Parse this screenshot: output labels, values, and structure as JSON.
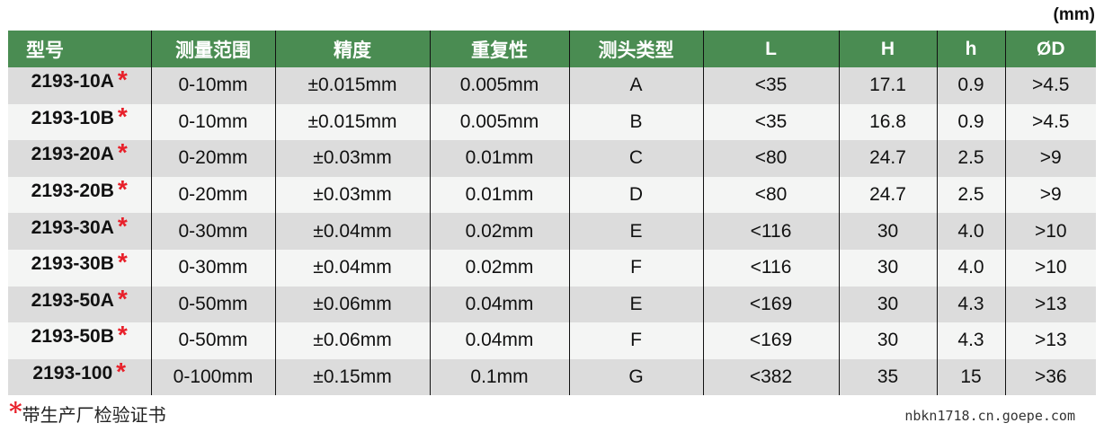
{
  "unit": "(mm)",
  "headers": [
    "型号",
    "测量范围",
    "精度",
    "重复性",
    "测头类型",
    "L",
    "H",
    "h",
    "ØD"
  ],
  "rows": [
    [
      "2193-10A",
      "0-10mm",
      "±0.015mm",
      "0.005mm",
      "A",
      "<35",
      "17.1",
      "0.9",
      ">4.5"
    ],
    [
      "2193-10B",
      "0-10mm",
      "±0.015mm",
      "0.005mm",
      "B",
      "<35",
      "16.8",
      "0.9",
      ">4.5"
    ],
    [
      "2193-20A",
      "0-20mm",
      "±0.03mm",
      "0.01mm",
      "C",
      "<80",
      "24.7",
      "2.5",
      ">9"
    ],
    [
      "2193-20B",
      "0-20mm",
      "±0.03mm",
      "0.01mm",
      "D",
      "<80",
      "24.7",
      "2.5",
      ">9"
    ],
    [
      "2193-30A",
      "0-30mm",
      "±0.04mm",
      "0.02mm",
      "E",
      "<116",
      "30",
      "4.0",
      ">10"
    ],
    [
      "2193-30B",
      "0-30mm",
      "±0.04mm",
      "0.02mm",
      "F",
      "<116",
      "30",
      "4.0",
      ">10"
    ],
    [
      "2193-50A",
      "0-50mm",
      "±0.06mm",
      "0.04mm",
      "E",
      "<169",
      "30",
      "4.3",
      ">13"
    ],
    [
      "2193-50B",
      "0-50mm",
      "±0.06mm",
      "0.04mm",
      "F",
      "<169",
      "30",
      "4.3",
      ">13"
    ],
    [
      "2193-100",
      "0-100mm",
      "±0.15mm",
      "0.1mm",
      "G",
      "<382",
      "35",
      "15",
      ">36"
    ]
  ],
  "star": "*",
  "note": "带生产厂检验证书",
  "watermark": "nbkn1718.cn.goepe.com",
  "colors": {
    "header_bg": "#4a8c52",
    "row_dark": "#dcdcdc",
    "row_light": "#f4f5f4",
    "star": "#e8202a"
  }
}
